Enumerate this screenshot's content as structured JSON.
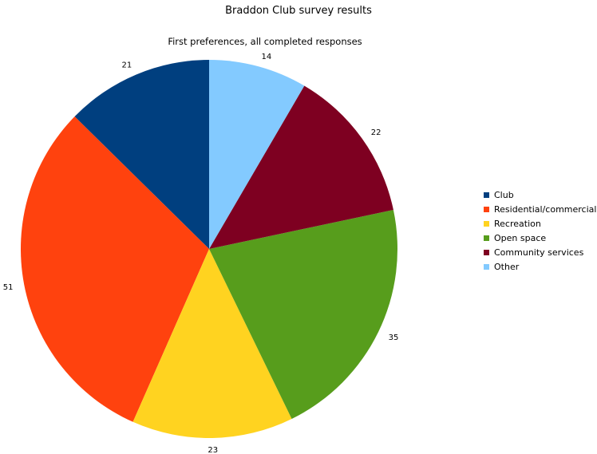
{
  "chart_data": {
    "type": "pie",
    "title": "Braddon Club survey results",
    "subtitle": "First preferences, all completed responses",
    "categories": [
      "Club",
      "Residential/commercial",
      "Recreation",
      "Open space",
      "Community services",
      "Other"
    ],
    "values": [
      21,
      51,
      23,
      35,
      22,
      14
    ],
    "colors": [
      "#003f7f",
      "#ff420e",
      "#ffd320",
      "#579d1c",
      "#7e0021",
      "#83caff"
    ],
    "legend_position": "right"
  }
}
